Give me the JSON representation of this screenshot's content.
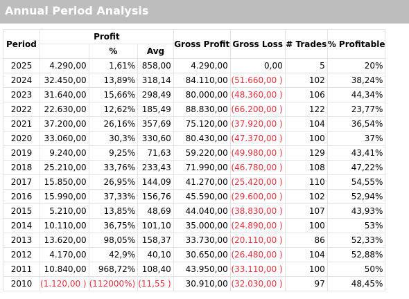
{
  "title": "Annual Period Analysis",
  "headers": {
    "period": "Period",
    "profit": "Profit",
    "pct": "%",
    "avg": "Avg",
    "gross_profit": "Gross Profit",
    "gross_loss": "Gross Loss",
    "trades": "# Trades",
    "pct_profitable": "% Profitable"
  },
  "colors": {
    "negative": "#e0323c",
    "title_bg": "#bdbdbd"
  },
  "rows": [
    {
      "period": "2025",
      "profit": "4.290,00",
      "profit_neg": false,
      "pct": "1,61%",
      "pct_neg": false,
      "avg": "858,00",
      "avg_neg": false,
      "gross_profit": "4.290,00",
      "gross_loss": "0,00",
      "gross_loss_neg": false,
      "trades": "5",
      "pct_profitable": "20%"
    },
    {
      "period": "2024",
      "profit": "32.450,00",
      "profit_neg": false,
      "pct": "13,89%",
      "pct_neg": false,
      "avg": "318,14",
      "avg_neg": false,
      "gross_profit": "84.110,00",
      "gross_loss": "(51.660,00 )",
      "gross_loss_neg": true,
      "trades": "102",
      "pct_profitable": "38,24%"
    },
    {
      "period": "2023",
      "profit": "31.640,00",
      "profit_neg": false,
      "pct": "15,66%",
      "pct_neg": false,
      "avg": "298,49",
      "avg_neg": false,
      "gross_profit": "80.000,00",
      "gross_loss": "(48.360,00 )",
      "gross_loss_neg": true,
      "trades": "106",
      "pct_profitable": "44,34%"
    },
    {
      "period": "2022",
      "profit": "22.630,00",
      "profit_neg": false,
      "pct": "12,62%",
      "pct_neg": false,
      "avg": "185,49",
      "avg_neg": false,
      "gross_profit": "88.830,00",
      "gross_loss": "(66.200,00 )",
      "gross_loss_neg": true,
      "trades": "122",
      "pct_profitable": "23,77%"
    },
    {
      "period": "2021",
      "profit": "37.200,00",
      "profit_neg": false,
      "pct": "26,16%",
      "pct_neg": false,
      "avg": "357,69",
      "avg_neg": false,
      "gross_profit": "75.120,00",
      "gross_loss": "(37.920,00 )",
      "gross_loss_neg": true,
      "trades": "104",
      "pct_profitable": "36,54%"
    },
    {
      "period": "2020",
      "profit": "33.060,00",
      "profit_neg": false,
      "pct": "30,3%",
      "pct_neg": false,
      "avg": "330,60",
      "avg_neg": false,
      "gross_profit": "80.430,00",
      "gross_loss": "(47.370,00 )",
      "gross_loss_neg": true,
      "trades": "100",
      "pct_profitable": "37%"
    },
    {
      "period": "2019",
      "profit": "9.240,00",
      "profit_neg": false,
      "pct": "9,25%",
      "pct_neg": false,
      "avg": "71,63",
      "avg_neg": false,
      "gross_profit": "59.220,00",
      "gross_loss": "(49.980,00 )",
      "gross_loss_neg": true,
      "trades": "129",
      "pct_profitable": "43,41%"
    },
    {
      "period": "2018",
      "profit": "25.210,00",
      "profit_neg": false,
      "pct": "33,76%",
      "pct_neg": false,
      "avg": "233,43",
      "avg_neg": false,
      "gross_profit": "71.990,00",
      "gross_loss": "(46.780,00 )",
      "gross_loss_neg": true,
      "trades": "108",
      "pct_profitable": "47,22%"
    },
    {
      "period": "2017",
      "profit": "15.850,00",
      "profit_neg": false,
      "pct": "26,95%",
      "pct_neg": false,
      "avg": "144,09",
      "avg_neg": false,
      "gross_profit": "41.270,00",
      "gross_loss": "(25.420,00 )",
      "gross_loss_neg": true,
      "trades": "110",
      "pct_profitable": "54,55%"
    },
    {
      "period": "2016",
      "profit": "15.990,00",
      "profit_neg": false,
      "pct": "37,33%",
      "pct_neg": false,
      "avg": "156,76",
      "avg_neg": false,
      "gross_profit": "45.590,00",
      "gross_loss": "(29.600,00 )",
      "gross_loss_neg": true,
      "trades": "102",
      "pct_profitable": "52,94%"
    },
    {
      "period": "2015",
      "profit": "5.210,00",
      "profit_neg": false,
      "pct": "13,85%",
      "pct_neg": false,
      "avg": "48,69",
      "avg_neg": false,
      "gross_profit": "44.040,00",
      "gross_loss": "(38.830,00 )",
      "gross_loss_neg": true,
      "trades": "107",
      "pct_profitable": "43,93%"
    },
    {
      "period": "2014",
      "profit": "10.110,00",
      "profit_neg": false,
      "pct": "36,75%",
      "pct_neg": false,
      "avg": "101,10",
      "avg_neg": false,
      "gross_profit": "35.000,00",
      "gross_loss": "(24.890,00 )",
      "gross_loss_neg": true,
      "trades": "100",
      "pct_profitable": "53%"
    },
    {
      "period": "2013",
      "profit": "13.620,00",
      "profit_neg": false,
      "pct": "98,05%",
      "pct_neg": false,
      "avg": "158,37",
      "avg_neg": false,
      "gross_profit": "33.730,00",
      "gross_loss": "(20.110,00 )",
      "gross_loss_neg": true,
      "trades": "86",
      "pct_profitable": "52,33%"
    },
    {
      "period": "2012",
      "profit": "4.170,00",
      "profit_neg": false,
      "pct": "42,9%",
      "pct_neg": false,
      "avg": "40,10",
      "avg_neg": false,
      "gross_profit": "30.650,00",
      "gross_loss": "(26.480,00 )",
      "gross_loss_neg": true,
      "trades": "104",
      "pct_profitable": "52,88%"
    },
    {
      "period": "2011",
      "profit": "10.840,00",
      "profit_neg": false,
      "pct": "968,72%",
      "pct_neg": false,
      "avg": "108,40",
      "avg_neg": false,
      "gross_profit": "43.950,00",
      "gross_loss": "(33.110,00 )",
      "gross_loss_neg": true,
      "trades": "100",
      "pct_profitable": "50%"
    },
    {
      "period": "2010",
      "profit": "(1.120,00 )",
      "profit_neg": true,
      "pct": "(112000%)",
      "pct_neg": true,
      "avg": "(11,55 )",
      "avg_neg": true,
      "gross_profit": "30.910,00",
      "gross_loss": "(32.030,00 )",
      "gross_loss_neg": true,
      "trades": "97",
      "pct_profitable": "48,45%"
    }
  ]
}
